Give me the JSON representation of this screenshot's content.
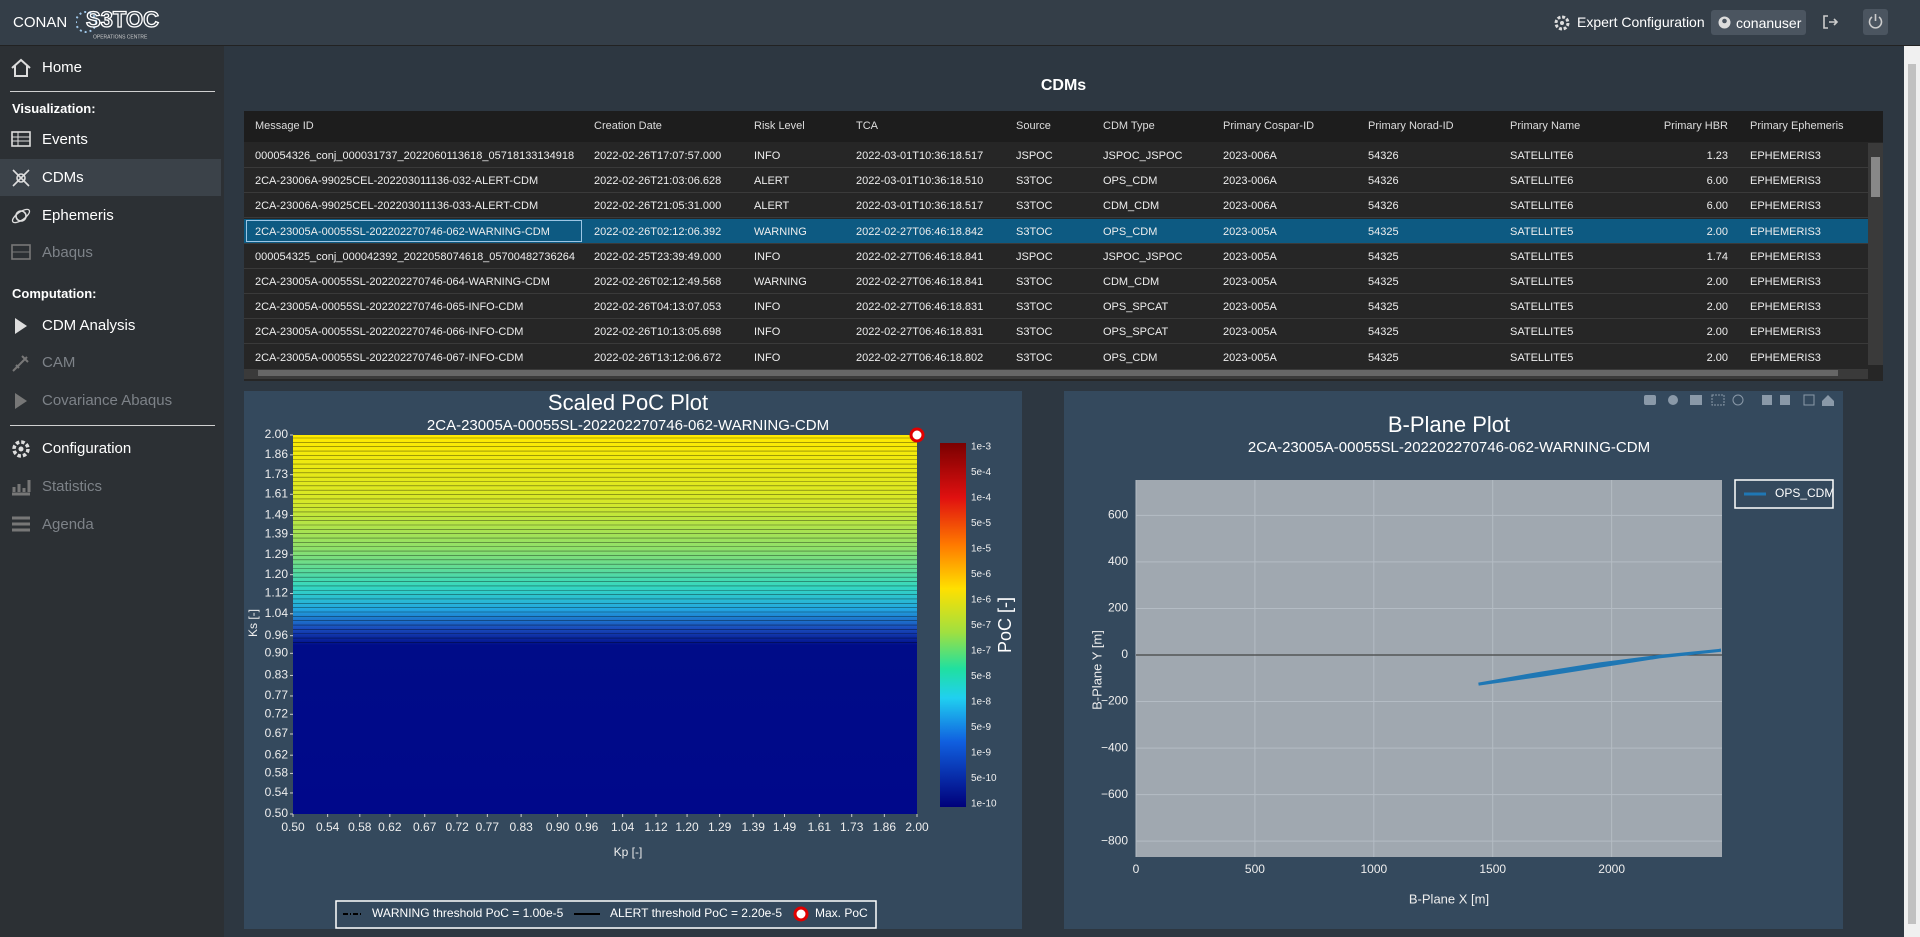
{
  "header": {
    "brand": "CONAN",
    "logo": "S3TOC",
    "logo_subtitle": "OPERATIONS CENTRE",
    "expert": "Expert Configuration",
    "user": "conanuser"
  },
  "sidebar": {
    "home": "Home",
    "visualization": {
      "heading": "Visualization:",
      "items": [
        "Events",
        "CDMs",
        "Ephemeris",
        "Abaqus"
      ]
    },
    "computation": {
      "heading": "Computation:",
      "items": [
        "CDM Analysis",
        "CAM",
        "Covariance Abaqus"
      ]
    },
    "other": [
      "Configuration",
      "Statistics",
      "Agenda"
    ]
  },
  "table": {
    "title": "CDMs",
    "columns": [
      "Message ID",
      "Creation Date",
      "Risk Level",
      "TCA",
      "Source",
      "CDM Type",
      "Primary Cospar-ID",
      "Primary Norad-ID",
      "Primary Name",
      "Primary HBR",
      "Primary Ephemeris"
    ],
    "selected_row": 3,
    "rows": [
      [
        "000054326_conj_000031737_2022060113618_05718133134918",
        "2022-02-26T17:07:57.000",
        "INFO",
        "2022-03-01T10:36:18.517",
        "JSPOC",
        "JSPOC_JSPOC",
        "2023-006A",
        "54326",
        "SATELLITE6",
        "1.23",
        "EPHEMERIS3"
      ],
      [
        "2CA-23006A-99025CEL-202203011136-032-ALERT-CDM",
        "2022-02-26T21:03:06.628",
        "ALERT",
        "2022-03-01T10:36:18.510",
        "S3TOC",
        "OPS_CDM",
        "2023-006A",
        "54326",
        "SATELLITE6",
        "6.00",
        "EPHEMERIS3"
      ],
      [
        "2CA-23006A-99025CEL-202203011136-033-ALERT-CDM",
        "2022-02-26T21:05:31.000",
        "ALERT",
        "2022-03-01T10:36:18.517",
        "S3TOC",
        "CDM_CDM",
        "2023-006A",
        "54326",
        "SATELLITE6",
        "6.00",
        "EPHEMERIS3"
      ],
      [
        "2CA-23005A-00055SL-202202270746-062-WARNING-CDM",
        "2022-02-26T02:12:06.392",
        "WARNING",
        "2022-02-27T06:46:18.842",
        "S3TOC",
        "OPS_CDM",
        "2023-005A",
        "54325",
        "SATELLITE5",
        "2.00",
        "EPHEMERIS3"
      ],
      [
        "000054325_conj_000042392_2022058074618_05700482736264",
        "2022-02-25T23:39:49.000",
        "INFO",
        "2022-02-27T06:46:18.841",
        "JSPOC",
        "JSPOC_JSPOC",
        "2023-005A",
        "54325",
        "SATELLITE5",
        "1.74",
        "EPHEMERIS3"
      ],
      [
        "2CA-23005A-00055SL-202202270746-064-WARNING-CDM",
        "2022-02-26T02:12:49.568",
        "WARNING",
        "2022-02-27T06:46:18.841",
        "S3TOC",
        "CDM_CDM",
        "2023-005A",
        "54325",
        "SATELLITE5",
        "2.00",
        "EPHEMERIS3"
      ],
      [
        "2CA-23005A-00055SL-202202270746-065-INFO-CDM",
        "2022-02-26T04:13:07.053",
        "INFO",
        "2022-02-27T06:46:18.831",
        "S3TOC",
        "OPS_SPCAT",
        "2023-005A",
        "54325",
        "SATELLITE5",
        "2.00",
        "EPHEMERIS3"
      ],
      [
        "2CA-23005A-00055SL-202202270746-066-INFO-CDM",
        "2022-02-26T10:13:05.698",
        "INFO",
        "2022-02-27T06:46:18.831",
        "S3TOC",
        "OPS_SPCAT",
        "2023-005A",
        "54325",
        "SATELLITE5",
        "2.00",
        "EPHEMERIS3"
      ],
      [
        "2CA-23005A-00055SL-202202270746-067-INFO-CDM",
        "2022-02-26T13:12:06.672",
        "INFO",
        "2022-02-27T06:46:18.802",
        "S3TOC",
        "OPS_CDM",
        "2023-005A",
        "54325",
        "SATELLITE5",
        "2.00",
        "EPHEMERIS3"
      ]
    ]
  },
  "poc_plot": {
    "type": "contour",
    "title": "Scaled PoC Plot",
    "subtitle": "2CA-23005A-00055SL-202202270746-062-WARNING-CDM",
    "xlabel": "Kp [-]",
    "ylabel": "Ks [-]",
    "log_scale": true,
    "xlim": [
      0.5,
      2.0
    ],
    "ylim": [
      0.5,
      2.0
    ],
    "xticks": [
      {
        "value": 0.5,
        "label": "0.50"
      },
      {
        "value": 0.54,
        "label": "0.54"
      },
      {
        "value": 0.58,
        "label": "0.58"
      },
      {
        "value": 0.62,
        "label": "0.62"
      },
      {
        "value": 0.67,
        "label": "0.67"
      },
      {
        "value": 0.72,
        "label": "0.72"
      },
      {
        "value": 0.77,
        "label": "0.77"
      },
      {
        "value": 0.83,
        "label": "0.83"
      },
      {
        "value": 0.9,
        "label": "0.90"
      },
      {
        "value": 0.96,
        "label": "0.96"
      },
      {
        "value": 1.04,
        "label": "1.04"
      },
      {
        "value": 1.12,
        "label": "1.12"
      },
      {
        "value": 1.2,
        "label": "1.20"
      },
      {
        "value": 1.29,
        "label": "1.29"
      },
      {
        "value": 1.39,
        "label": "1.39"
      },
      {
        "value": 1.49,
        "label": "1.49"
      },
      {
        "value": 1.61,
        "label": "1.61"
      },
      {
        "value": 1.73,
        "label": "1.73"
      },
      {
        "value": 1.86,
        "label": "1.86"
      },
      {
        "value": 2.0,
        "label": "2.00"
      }
    ],
    "yticks": [
      {
        "value": 0.5,
        "label": "0.50"
      },
      {
        "value": 0.54,
        "label": "0.54"
      },
      {
        "value": 0.58,
        "label": "0.58"
      },
      {
        "value": 0.62,
        "label": "0.62"
      },
      {
        "value": 0.67,
        "label": "0.67"
      },
      {
        "value": 0.72,
        "label": "0.72"
      },
      {
        "value": 0.77,
        "label": "0.77"
      },
      {
        "value": 0.83,
        "label": "0.83"
      },
      {
        "value": 0.9,
        "label": "0.90"
      },
      {
        "value": 0.96,
        "label": "0.96"
      },
      {
        "value": 1.04,
        "label": "1.04"
      },
      {
        "value": 1.12,
        "label": "1.12"
      },
      {
        "value": 1.2,
        "label": "1.20"
      },
      {
        "value": 1.29,
        "label": "1.29"
      },
      {
        "value": 1.39,
        "label": "1.39"
      },
      {
        "value": 1.49,
        "label": "1.49"
      },
      {
        "value": 1.61,
        "label": "1.61"
      },
      {
        "value": 1.73,
        "label": "1.73"
      },
      {
        "value": 1.86,
        "label": "1.86"
      },
      {
        "value": 2.0,
        "label": "2.00"
      }
    ],
    "colorbar_title": "PoC [-]",
    "colorbar_labels": [
      "1e-3",
      "5e-4",
      "1e-4",
      "5e-5",
      "1e-5",
      "5e-6",
      "1e-6",
      "5e-7",
      "1e-7",
      "5e-8",
      "1e-8",
      "5e-9",
      "1e-9",
      "5e-10",
      "1e-10"
    ],
    "max_poc_x": 2.0,
    "max_poc_y": 2.0,
    "legend": [
      "WARNING threshold PoC = 1.00e-5",
      "ALERT threshold PoC = 2.20e-5",
      "Max. PoC"
    ]
  },
  "bplane_plot": {
    "type": "line",
    "title": "B-Plane Plot",
    "subtitle": "2CA-23005A-00055SL-202202270746-062-WARNING-CDM",
    "xlabel": "B-Plane X [m]",
    "ylabel": "B-Plane Y [m]",
    "grid": true,
    "xlim": [
      0,
      2464
    ],
    "ylim": [
      -868,
      752
    ],
    "xticks": [
      0,
      500,
      1000,
      1500,
      2000
    ],
    "yticks": [
      {
        "value": -800,
        "label": "−800"
      },
      {
        "value": -600,
        "label": "−600"
      },
      {
        "value": -400,
        "label": "−400"
      },
      {
        "value": -200,
        "label": "−200"
      },
      0,
      200,
      400,
      600
    ],
    "legend_corner": "top-right",
    "series": [
      {
        "name": "OPS_CDM",
        "color": "#1f77b4",
        "x": [
          1440,
          1700,
          1950,
          2200,
          2460,
          2200,
          1950,
          1700,
          1440
        ],
        "values": [
          -125,
          -88,
          -48,
          -8,
          20,
          -6,
          -38,
          -78,
          -125
        ]
      }
    ]
  }
}
